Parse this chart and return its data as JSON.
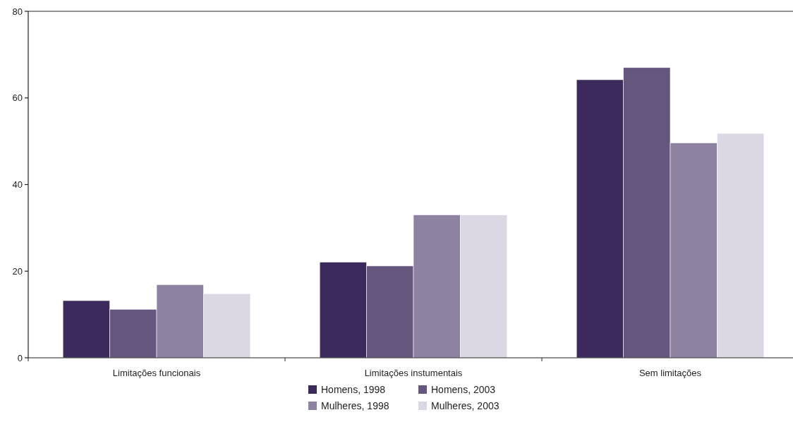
{
  "chart_data": {
    "type": "bar",
    "categories": [
      "Limitações funcionais",
      "Limitações instumentais",
      "Sem limitações"
    ],
    "series": [
      {
        "name": "Homens, 1998",
        "color": "#3c2a5c",
        "values": [
          13.2,
          22.1,
          64.2
        ]
      },
      {
        "name": "Homens, 2003",
        "color": "#65567d",
        "values": [
          11.2,
          21.2,
          67.0
        ]
      },
      {
        "name": "Mulheres, 1998",
        "color": "#8e82a3",
        "values": [
          16.9,
          33,
          49.6
        ]
      },
      {
        "name": "Mulheres, 2003",
        "color": "#dcd8e3",
        "values": [
          14.8,
          33,
          51.8
        ]
      }
    ],
    "ylim": [
      0,
      80
    ],
    "yticks": [
      0,
      20,
      40,
      60,
      80
    ],
    "grid": false,
    "legend": "bottom"
  }
}
